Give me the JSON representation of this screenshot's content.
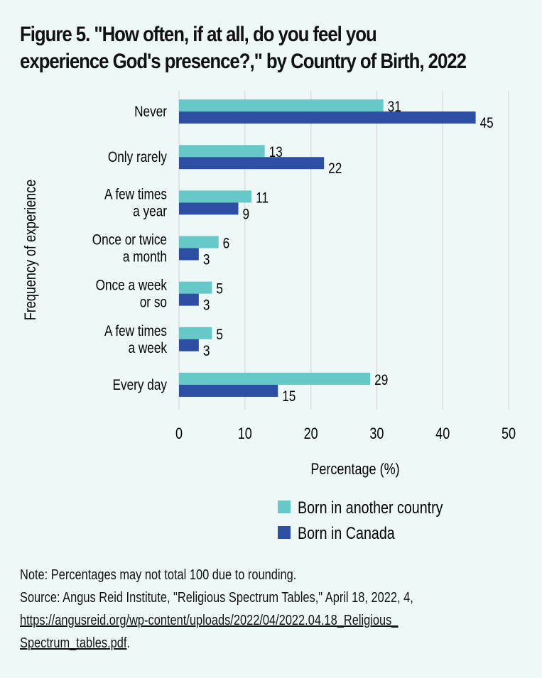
{
  "figure": {
    "title_line1": "Figure 5. \"How often, if at all, do you feel you",
    "title_line2": "experience God's presence?,\" by Country of Birth, 2022"
  },
  "chart_data": {
    "type": "bar",
    "orientation": "horizontal",
    "title": "Figure 5. \"How often, if at all, do you feel you experience God's presence?,\" by Country of Birth, 2022",
    "categories": [
      [
        "Never"
      ],
      [
        "Only rarely"
      ],
      [
        "A few times",
        "a year"
      ],
      [
        "Once or twice",
        "a month"
      ],
      [
        "Once a week",
        "or so"
      ],
      [
        "A few times",
        "a week"
      ],
      [
        "Every day"
      ]
    ],
    "series": [
      {
        "name": "Born in another country",
        "color": "#67c8c8",
        "values": [
          31,
          13,
          11,
          6,
          5,
          5,
          29
        ]
      },
      {
        "name": "Born in Canada",
        "color": "#2c4fa3",
        "values": [
          45,
          22,
          9,
          3,
          3,
          3,
          15
        ]
      }
    ],
    "xlabel": "Percentage (%)",
    "ylabel": "Frequency of experience",
    "xlim": [
      0,
      50
    ],
    "xticks": [
      0,
      10,
      20,
      30,
      40,
      50
    ],
    "grid": true,
    "legend_position": "bottom-center",
    "data_labels": true
  },
  "footer": {
    "note": "Note: Percentages may not total 100 due to rounding.",
    "source": "Source: Angus Reid Institute, \"Religious Spectrum Tables,\" April 18, 2022, 4,",
    "link_line1": "https://angusreid.org/wp-content/uploads/2022/04/2022.04.18_Religious_",
    "link_line2": "Spectrum_tables.pdf",
    "link_suffix": "."
  }
}
